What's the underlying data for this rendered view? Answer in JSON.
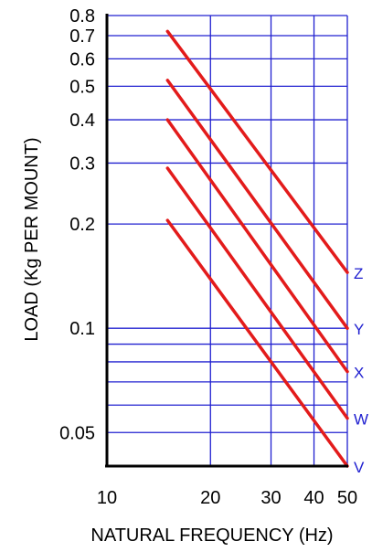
{
  "chart_data": {
    "type": "line",
    "xlabel": "NATURAL FREQUENCY (Hz)",
    "ylabel": "LOAD (Kg PER MOUNT)",
    "x_scale": "log",
    "y_scale": "log",
    "xlim": [
      10,
      50
    ],
    "ylim": [
      0.04,
      0.8
    ],
    "x_ticks": [
      10,
      20,
      30,
      40,
      50
    ],
    "y_ticks": [
      0.05,
      0.1,
      0.2,
      0.3,
      0.4,
      0.5,
      0.6,
      0.7,
      0.8
    ],
    "x_gridlines": [
      20,
      30,
      40,
      50
    ],
    "y_gridlines": [
      0.05,
      0.06,
      0.07,
      0.08,
      0.09,
      0.1,
      0.2,
      0.3,
      0.4,
      0.5,
      0.6,
      0.7,
      0.8
    ],
    "grid": true,
    "series": [
      {
        "name": "Z",
        "x": [
          15,
          50
        ],
        "y": [
          0.72,
          0.145
        ]
      },
      {
        "name": "Y",
        "x": [
          15,
          50
        ],
        "y": [
          0.52,
          0.1
        ]
      },
      {
        "name": "X",
        "x": [
          15,
          50
        ],
        "y": [
          0.4,
          0.075
        ]
      },
      {
        "name": "W",
        "x": [
          15,
          50
        ],
        "y": [
          0.29,
          0.055
        ]
      },
      {
        "name": "V",
        "x": [
          15,
          50
        ],
        "y": [
          0.205,
          0.04
        ]
      }
    ],
    "colors": {
      "series": "#e31b1b",
      "grid": "#2020d0",
      "axis": "#000000",
      "series_label": "#2020d0"
    }
  }
}
